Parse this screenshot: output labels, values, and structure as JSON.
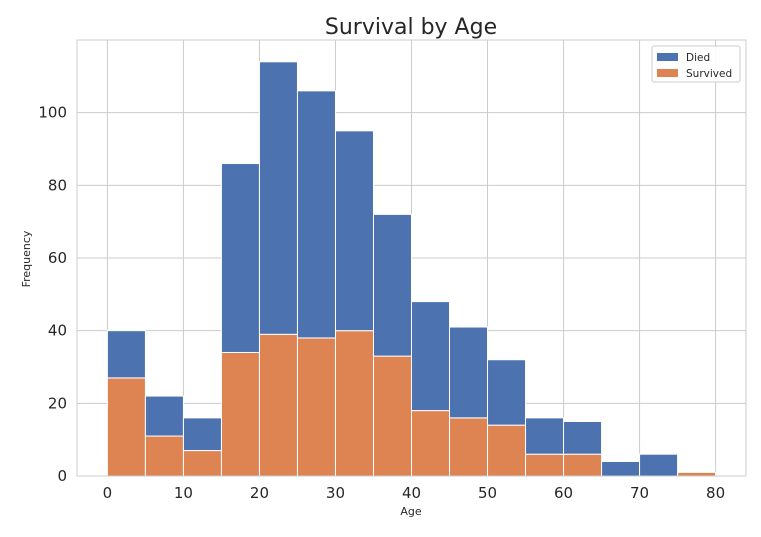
{
  "chart_data": {
    "type": "bar",
    "stacked": true,
    "title": "Survival by Age",
    "xlabel": "Age",
    "ylabel": "Frequency",
    "bin_width": 5,
    "bin_starts": [
      0,
      5,
      10,
      15,
      20,
      25,
      30,
      35,
      40,
      45,
      50,
      55,
      60,
      65,
      70,
      75
    ],
    "series": [
      {
        "name": "Survived",
        "color": "#dd8452",
        "values": [
          27,
          11,
          7,
          34,
          39,
          38,
          40,
          33,
          18,
          16,
          14,
          6,
          6,
          0,
          0,
          1
        ]
      },
      {
        "name": "Died",
        "color": "#4c72b0",
        "values": [
          13,
          11,
          9,
          52,
          75,
          68,
          55,
          39,
          30,
          25,
          18,
          10,
          9,
          4,
          6,
          0
        ]
      }
    ],
    "xlim": [
      -4,
      84
    ],
    "ylim": [
      0,
      120
    ],
    "x_ticks": [
      0,
      10,
      20,
      30,
      40,
      50,
      60,
      70,
      80
    ],
    "y_ticks": [
      0,
      20,
      40,
      60,
      80,
      100
    ],
    "grid": true,
    "legend_position": "top-right",
    "legend_order": [
      "Died",
      "Survived"
    ]
  }
}
